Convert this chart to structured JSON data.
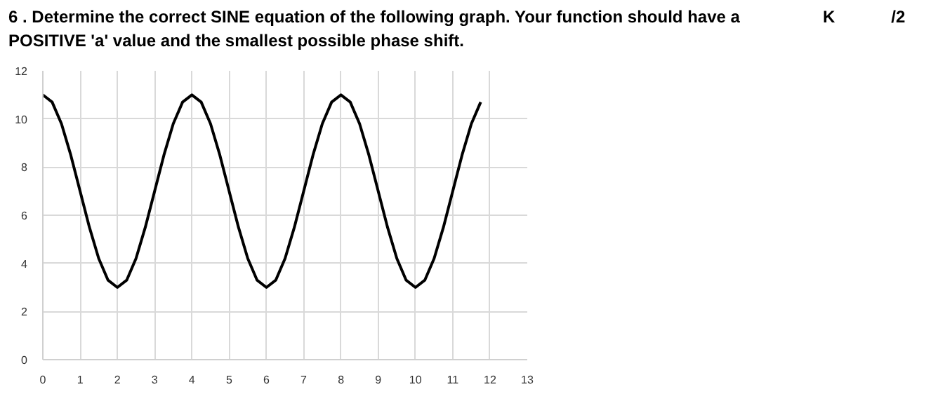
{
  "chart_data": {
    "type": "line",
    "title": "6 . Determine the correct SINE equation of the following graph. Your function should have a POSITIVE 'a' value and the smallest possible phase shift.",
    "annotations": [
      "K",
      "/2"
    ],
    "x": [
      0,
      0.25,
      0.5,
      0.75,
      1,
      1.25,
      1.5,
      1.75,
      2,
      2.25,
      2.5,
      2.75,
      3,
      3.25,
      3.5,
      3.75,
      4,
      4.25,
      4.5,
      4.75,
      5,
      5.25,
      5.5,
      5.75,
      6,
      6.25,
      6.5,
      6.75,
      7,
      7.25,
      7.5,
      7.75,
      8,
      8.25,
      8.5,
      8.75,
      9,
      9.25,
      9.5,
      9.75,
      10,
      10.25,
      10.5,
      10.75,
      11,
      11.25,
      11.5,
      11.75
    ],
    "series": [
      {
        "color": "#000000",
        "values": [
          11,
          10.7,
          9.8,
          8.5,
          7,
          5.5,
          4.2,
          3.3,
          3,
          3.3,
          4.2,
          5.5,
          7,
          8.5,
          9.8,
          10.7,
          11,
          10.7,
          9.8,
          8.5,
          7,
          5.5,
          4.2,
          3.3,
          3,
          3.3,
          4.2,
          5.5,
          7,
          8.5,
          9.8,
          10.7,
          11,
          10.7,
          9.8,
          8.5,
          7,
          5.5,
          4.2,
          3.3,
          3,
          3.3,
          4.2,
          5.5,
          7,
          8.5,
          9.8,
          10.7
        ]
      }
    ],
    "xlim": [
      0,
      13
    ],
    "xticks": [
      0,
      1,
      2,
      3,
      4,
      5,
      6,
      7,
      8,
      9,
      10,
      11,
      12,
      13
    ],
    "ylim": [
      0,
      12
    ],
    "yticks": [
      0,
      2,
      4,
      6,
      8,
      10,
      12
    ],
    "grid": true,
    "marker": "none",
    "line_style": "solid"
  }
}
